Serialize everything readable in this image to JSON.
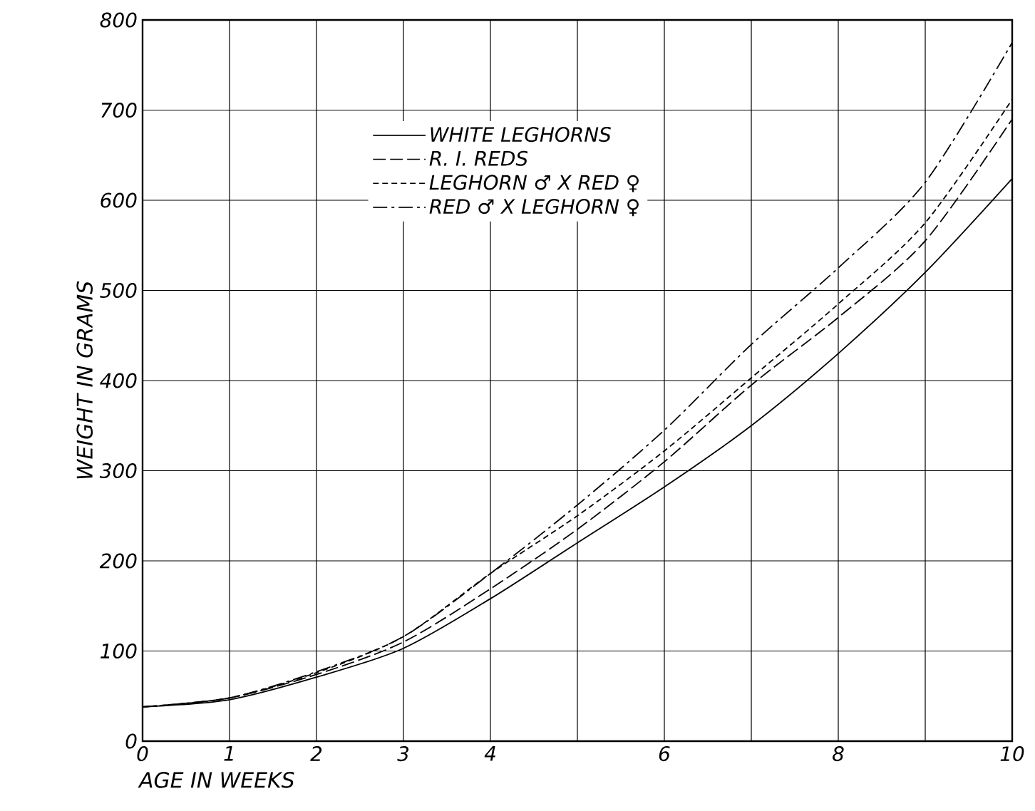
{
  "chart_data": {
    "type": "line",
    "xlabel": "AGE IN WEEKS",
    "ylabel": "WEIGHT IN GRAMS",
    "x": [
      0,
      1,
      2,
      3,
      4,
      5,
      6,
      7,
      8,
      9,
      10
    ],
    "series": [
      {
        "name": "WHITE LEGHORNS",
        "color": "#000000",
        "line_style": "solid",
        "values": [
          38,
          46,
          71,
          103,
          158,
          220,
          282,
          350,
          430,
          520,
          624
        ]
      },
      {
        "name": "R. I. REDS",
        "color": "#000000",
        "line_style": "long dashed",
        "values": [
          38,
          48,
          74,
          110,
          169,
          235,
          310,
          395,
          470,
          555,
          690
        ]
      },
      {
        "name": "LEGHORN ♂ X RED ♀",
        "color": "#000000",
        "line_style": "dashed",
        "values": [
          38,
          48,
          76,
          116,
          186,
          250,
          322,
          403,
          485,
          575,
          712
        ]
      },
      {
        "name": "RED ♂ X LEGHORN ♀",
        "color": "#000000",
        "line_style": "dash dot",
        "values": [
          38,
          48,
          77,
          116,
          186,
          262,
          345,
          440,
          525,
          620,
          775
        ]
      }
    ],
    "xlim": [
      0,
      10
    ],
    "ylim": [
      0,
      800
    ],
    "xticks": [
      0,
      1,
      2,
      3,
      4,
      {
        "value": 5,
        "label": null
      },
      6,
      {
        "value": 7,
        "label": null
      },
      8,
      {
        "value": 9,
        "label": null
      },
      10
    ],
    "yticks": [
      0,
      100,
      200,
      300,
      400,
      500,
      600,
      700,
      800
    ],
    "grid": true,
    "legend": "top",
    "marker": "none"
  }
}
